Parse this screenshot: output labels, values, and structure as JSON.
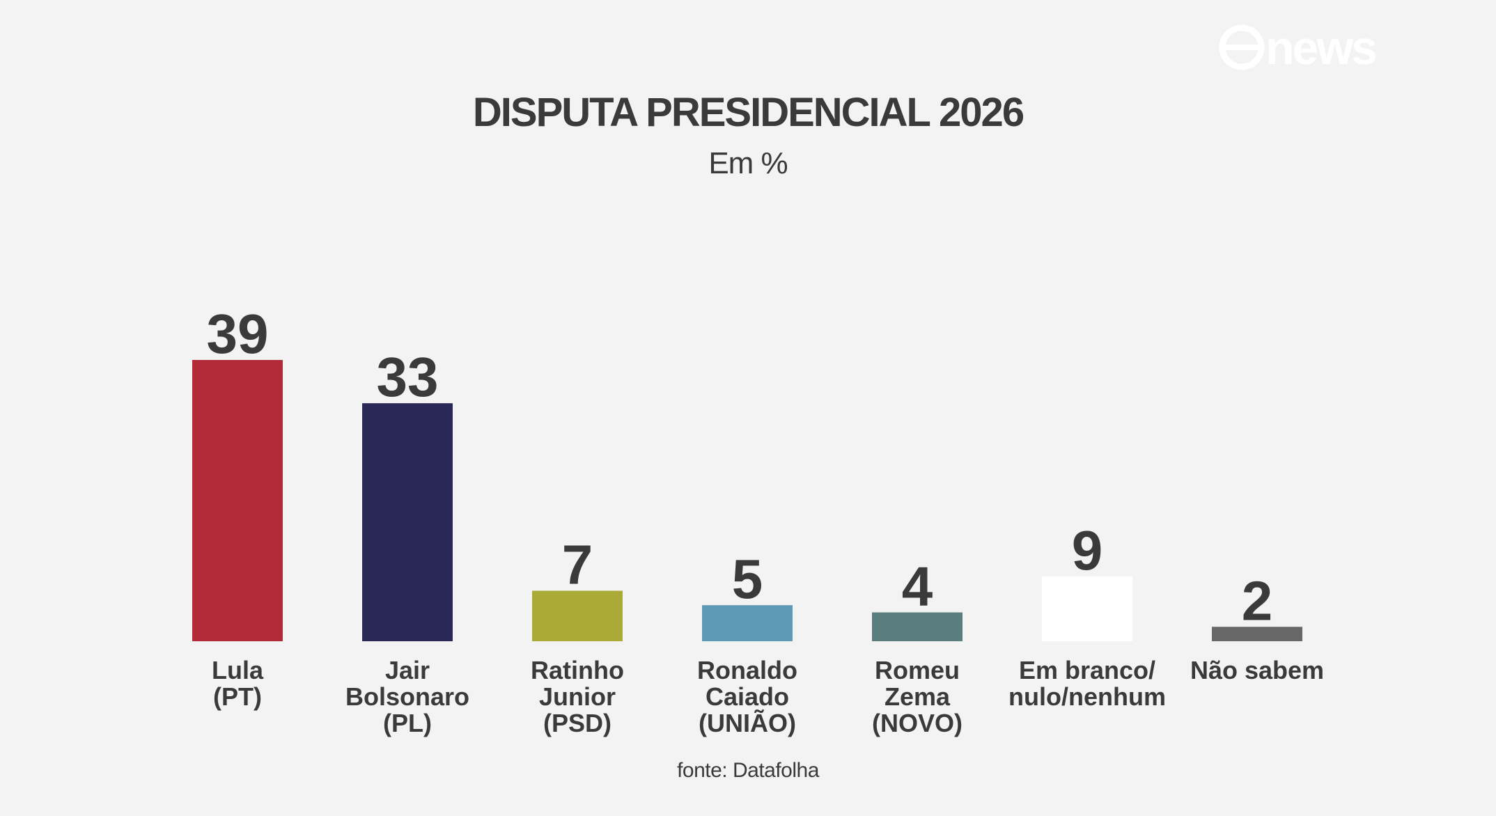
{
  "brand": {
    "logo_text": "news"
  },
  "chart_data": {
    "type": "bar",
    "title": "DISPUTA PRESIDENCIAL 2026",
    "subtitle": "Em %",
    "source": "fonte: Datafolha",
    "categories": [
      [
        "Lula",
        "(PT)"
      ],
      [
        "Jair",
        "Bolsonaro",
        "(PL)"
      ],
      [
        "Ratinho",
        "Junior",
        "(PSD)"
      ],
      [
        "Ronaldo",
        "Caiado",
        "(UNIÃO)"
      ],
      [
        "Romeu",
        "Zema",
        "(NOVO)"
      ],
      [
        "Em branco/",
        "nulo/nenhum"
      ],
      [
        "Não sabem"
      ]
    ],
    "values": [
      39,
      33,
      7,
      5,
      4,
      9,
      2
    ],
    "colors": [
      "#b32a37",
      "#2a2856",
      "#a9ab36",
      "#5c9ab6",
      "#5a7e7e",
      "#ffffff",
      "#686868"
    ],
    "ylim": [
      0,
      39
    ],
    "grid": false,
    "legend": "none"
  }
}
